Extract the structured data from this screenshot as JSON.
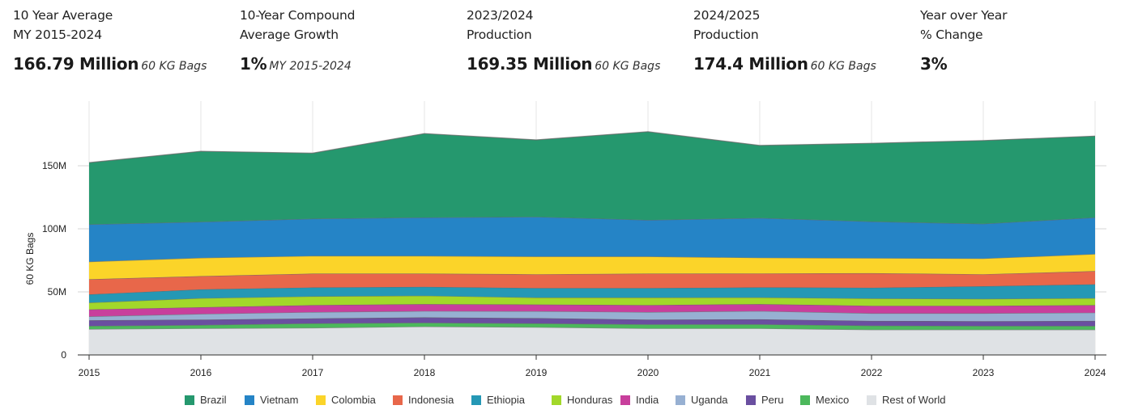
{
  "stats": [
    {
      "label_line1": "10 Year Average",
      "label_line2": "MY 2015-2024",
      "value": "166.79 Million",
      "unit": "60 KG Bags"
    },
    {
      "label_line1": "10-Year Compound",
      "label_line2": "Average Growth",
      "value": "1%",
      "unit": "MY 2015-2024"
    },
    {
      "label_line1": "2023/2024",
      "label_line2": "Production",
      "value": "169.35 Million",
      "unit": "60 KG Bags"
    },
    {
      "label_line1": "2024/2025",
      "label_line2": "Production",
      "value": "174.4 Million",
      "unit": "60 KG Bags"
    },
    {
      "label_line1": "Year over Year",
      "label_line2": "% Change",
      "value": "3%",
      "unit": ""
    }
  ],
  "chart_data": {
    "type": "area",
    "stacked": true,
    "title": "",
    "xlabel": "",
    "ylabel": "60 KG Bags",
    "x": [
      "2015",
      "2016",
      "2017",
      "2018",
      "2019",
      "2020",
      "2021",
      "2022",
      "2023",
      "2024"
    ],
    "ylim": [
      0,
      185
    ],
    "yticks": [
      {
        "value": 0,
        "label": "0"
      },
      {
        "value": 50,
        "label": "50M"
      },
      {
        "value": 100,
        "label": "100M"
      },
      {
        "value": 150,
        "label": "150M"
      }
    ],
    "grid": true,
    "legend_position": "bottom",
    "units": "million 60 KG bags",
    "series": [
      {
        "name": "Rest of World",
        "color": "#dfe2e5",
        "values": [
          20.5,
          21.0,
          21.5,
          22.5,
          22.0,
          21.0,
          21.0,
          20.0,
          20.0,
          20.0
        ]
      },
      {
        "name": "Mexico",
        "color": "#4cb85c",
        "values": [
          2.5,
          2.7,
          3.5,
          3.0,
          3.0,
          3.2,
          3.3,
          3.2,
          3.0,
          3.0
        ]
      },
      {
        "name": "Peru",
        "color": "#6a4fa0",
        "values": [
          4.5,
          4.3,
          4.0,
          4.3,
          4.2,
          3.8,
          4.0,
          3.8,
          3.8,
          4.0
        ]
      },
      {
        "name": "Uganda",
        "color": "#97b0d2",
        "values": [
          3.0,
          4.5,
          5.0,
          5.0,
          5.5,
          6.0,
          6.5,
          6.0,
          6.2,
          6.5
        ]
      },
      {
        "name": "India",
        "color": "#c83f9c",
        "values": [
          5.5,
          5.3,
          5.5,
          5.5,
          5.3,
          5.5,
          5.5,
          6.0,
          6.0,
          6.0
        ]
      },
      {
        "name": "Honduras",
        "color": "#a2d82a",
        "values": [
          5.5,
          7.2,
          7.0,
          6.7,
          5.5,
          6.0,
          5.3,
          5.8,
          5.5,
          5.5
        ]
      },
      {
        "name": "Ethiopia",
        "color": "#2598b5",
        "values": [
          6.5,
          7.0,
          7.0,
          7.0,
          7.5,
          7.5,
          8.0,
          8.5,
          10.0,
          11.0
        ]
      },
      {
        "name": "Indonesia",
        "color": "#e8674a",
        "values": [
          12.0,
          10.5,
          11.0,
          10.5,
          11.0,
          11.5,
          11.0,
          11.5,
          9.5,
          10.5
        ]
      },
      {
        "name": "Colombia",
        "color": "#fbd429",
        "values": [
          14.0,
          14.5,
          14.0,
          14.0,
          14.0,
          13.5,
          12.5,
          12.0,
          12.5,
          13.5
        ]
      },
      {
        "name": "Vietnam",
        "color": "#2584c6",
        "values": [
          29.5,
          28.5,
          29.5,
          30.5,
          31.5,
          29.0,
          31.5,
          29.0,
          27.5,
          29.0
        ]
      },
      {
        "name": "Brazil",
        "color": "#25986e",
        "values": [
          49.0,
          56.0,
          52.0,
          66.5,
          61.0,
          70.0,
          57.5,
          62.0,
          66.0,
          64.5
        ]
      }
    ]
  },
  "legend_order": [
    "Brazil",
    "Vietnam",
    "Colombia",
    "Indonesia",
    "Ethiopia",
    "Honduras",
    "India",
    "Uganda",
    "Peru",
    "Mexico",
    "Rest of World"
  ]
}
